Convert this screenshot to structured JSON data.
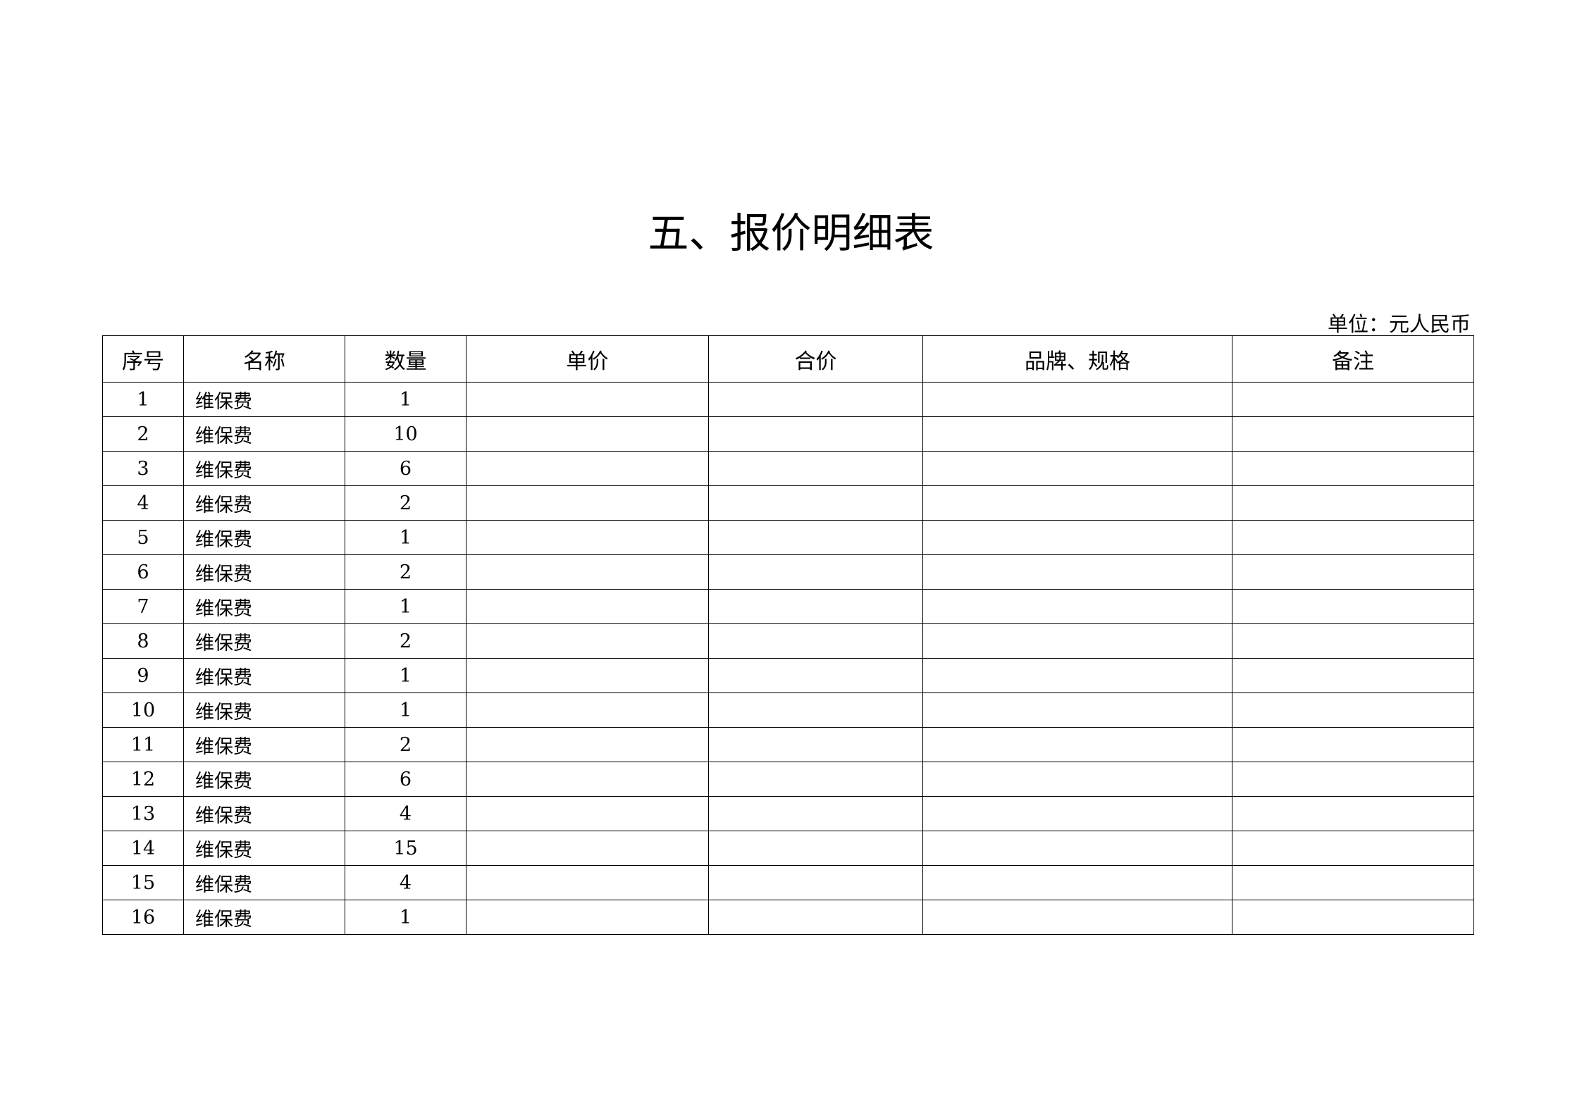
{
  "title": "五、报价明细表",
  "unit_label": "单位：元人民币",
  "table": {
    "headers": [
      "序号",
      "名称",
      "数量",
      "单价",
      "合价",
      "品牌、规格",
      "备注"
    ],
    "rows": [
      {
        "no": "1",
        "name": "维保费",
        "qty": "1"
      },
      {
        "no": "2",
        "name": "维保费",
        "qty": "10"
      },
      {
        "no": "3",
        "name": "维保费",
        "qty": "6"
      },
      {
        "no": "4",
        "name": "维保费",
        "qty": "2"
      },
      {
        "no": "5",
        "name": "维保费",
        "qty": "1"
      },
      {
        "no": "6",
        "name": "维保费",
        "qty": "2"
      },
      {
        "no": "7",
        "name": "维保费",
        "qty": "1"
      },
      {
        "no": "8",
        "name": "维保费",
        "qty": "2"
      },
      {
        "no": "9",
        "name": "维保费",
        "qty": "1"
      },
      {
        "no": "10",
        "name": "维保费",
        "qty": "1"
      },
      {
        "no": "11",
        "name": "维保费",
        "qty": "2"
      },
      {
        "no": "12",
        "name": "维保费",
        "qty": "6"
      },
      {
        "no": "13",
        "name": "维保费",
        "qty": "4"
      },
      {
        "no": "14",
        "name": "维保费",
        "qty": "15"
      },
      {
        "no": "15",
        "name": "维保费",
        "qty": "4"
      },
      {
        "no": "16",
        "name": "维保费",
        "qty": "1"
      }
    ]
  }
}
